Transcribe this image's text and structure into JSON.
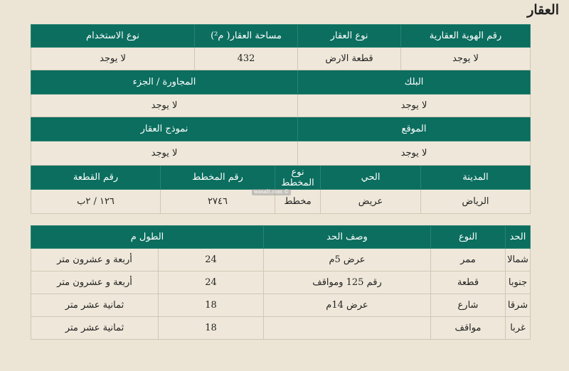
{
  "title": "العقار",
  "property": {
    "headers1": [
      "رقم الهوية العقارية",
      "نوع العقار",
      "مساحة العقار( م²)",
      "نوع الاستخدام"
    ],
    "values1": [
      "لا يوجد",
      "قطعة الارض",
      "432",
      "لا يوجد"
    ],
    "headers2": [
      "البلك",
      "المجاورة / الجزء"
    ],
    "values2": [
      "لا يوجد",
      "لا يوجد"
    ],
    "headers3": [
      "الموقع",
      "نموذج العقار"
    ],
    "values3": [
      "لا يوجد",
      "لا يوجد"
    ],
    "headers4": [
      "المدينة",
      "الحي",
      "نوع المخطط",
      "رقم المخطط",
      "رقم القطعة"
    ],
    "values4": [
      "الرياض",
      "عريض",
      "مخطط",
      "٢٧٤٦",
      "١٢٦ / ٢ب"
    ]
  },
  "watermark": "wasalt.com ©",
  "boundaries": {
    "headers": [
      "الحد",
      "النوع",
      "وصف الحد",
      "الطول م"
    ],
    "rows": [
      [
        "شمالا",
        "ممر",
        "عرض 5م",
        "24",
        "أربعة و عشرون متر"
      ],
      [
        "جنوبا",
        "قطعة",
        "رقم 125 ومواقف",
        "24",
        "أربعة و عشرون متر"
      ],
      [
        "شرقا",
        "شارع",
        "عرض 14م",
        "18",
        "ثمانية عشر متر"
      ],
      [
        "غربا",
        "مواقف",
        "",
        "18",
        "ثمانية عشر متر"
      ]
    ]
  },
  "colors": {
    "header_bg": "#0b6e5f",
    "page_bg": "#ece4d5"
  }
}
